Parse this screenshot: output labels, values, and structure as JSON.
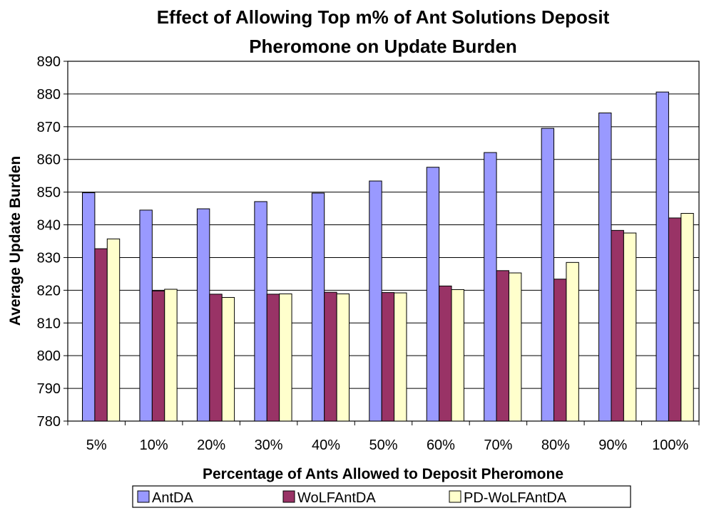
{
  "chart_data": {
    "type": "bar",
    "title_line1": "Effect of Allowing Top m% of Ant Solutions Deposit",
    "title_line2": "Pheromone on Update Burden",
    "xlabel": "Percentage of Ants Allowed to Deposit Pheromone",
    "ylabel": "Average Update Burden",
    "ylim": [
      780,
      890
    ],
    "ytick_step": 10,
    "grid": true,
    "legend_position": "bottom",
    "categories": [
      "5%",
      "10%",
      "20%",
      "30%",
      "40%",
      "50%",
      "60%",
      "70%",
      "80%",
      "90%",
      "100%"
    ],
    "series": [
      {
        "name": "AntDA",
        "color": "#9999ff",
        "values": [
          849.8,
          844.5,
          844.9,
          847.1,
          849.7,
          853.4,
          857.6,
          862.1,
          869.5,
          874.2,
          880.6
        ]
      },
      {
        "name": "WoLFAntDA",
        "color": "#993366",
        "values": [
          832.7,
          819.8,
          818.8,
          818.8,
          819.4,
          819.3,
          821.3,
          826.0,
          823.4,
          838.3,
          842.1
        ]
      },
      {
        "name": "PD-WoLFAntDA",
        "color": "#ffffcc",
        "values": [
          835.7,
          820.3,
          817.8,
          818.9,
          818.9,
          819.2,
          820.2,
          825.3,
          828.5,
          837.5,
          843.5
        ]
      }
    ]
  }
}
